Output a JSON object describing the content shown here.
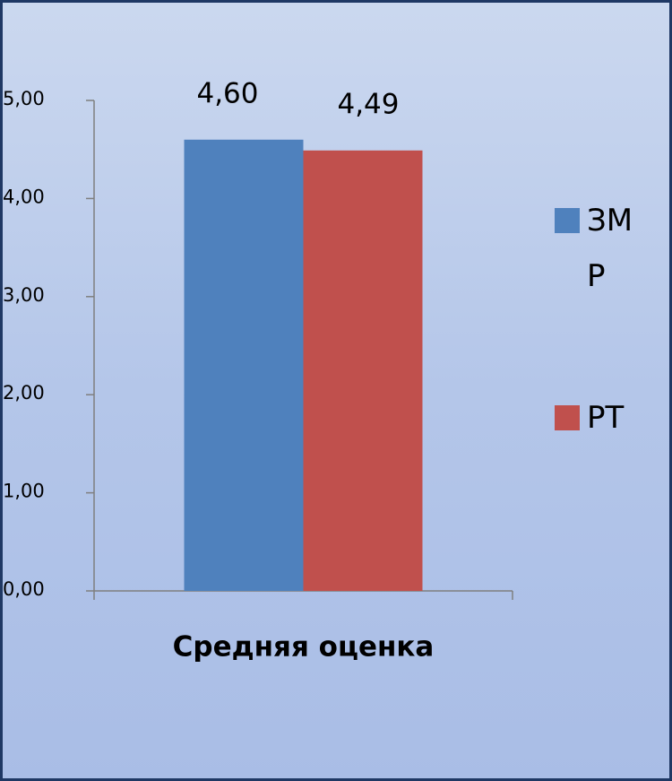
{
  "chart_data": {
    "type": "bar",
    "categories": [
      "Средняя оценка"
    ],
    "series": [
      {
        "name": "ЗМР",
        "color": "#4f81bd",
        "values": [
          4.6
        ],
        "value_labels": [
          "4,60"
        ]
      },
      {
        "name": "РТ",
        "color": "#c0504d",
        "values": [
          4.49
        ],
        "value_labels": [
          "4,49"
        ]
      }
    ],
    "ylim": [
      0,
      5
    ],
    "yticks": [
      {
        "value": 0,
        "label": "0,00"
      },
      {
        "value": 1,
        "label": "1,00"
      },
      {
        "value": 2,
        "label": "2,00"
      },
      {
        "value": 3,
        "label": "3,00"
      },
      {
        "value": 4,
        "label": "4,00"
      },
      {
        "value": 5,
        "label": "5,00"
      }
    ],
    "legend": "right"
  }
}
